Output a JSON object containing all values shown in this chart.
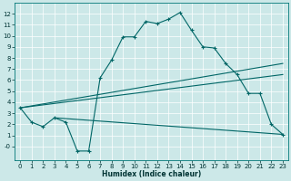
{
  "xlabel": "Humidex (Indice chaleur)",
  "background_color": "#cce8e8",
  "line_color": "#006666",
  "xlim": [
    -0.5,
    23.5
  ],
  "ylim": [
    -1.2,
    13
  ],
  "line1_x": [
    0,
    1,
    2,
    3,
    4,
    5,
    6,
    7,
    8,
    9,
    10,
    11,
    12,
    13,
    14,
    15,
    16,
    17,
    18,
    19,
    20,
    21,
    22,
    23
  ],
  "line1_y": [
    3.5,
    2.2,
    1.8,
    2.6,
    2.2,
    -0.4,
    -0.4,
    6.2,
    7.8,
    9.9,
    9.9,
    11.3,
    11.1,
    11.5,
    12.1,
    10.5,
    9.0,
    8.9,
    7.5,
    6.5,
    4.8,
    4.8,
    2.0,
    1.1
  ],
  "line2_x": [
    0,
    23
  ],
  "line2_y": [
    3.5,
    7.5
  ],
  "line3_x": [
    0,
    23
  ],
  "line3_y": [
    3.5,
    6.5
  ],
  "line4_x": [
    3,
    23
  ],
  "line4_y": [
    2.6,
    1.1
  ],
  "xtick_labels": [
    "0",
    "1",
    "2",
    "3",
    "4",
    "5",
    "6",
    "7",
    "8",
    "9",
    "10",
    "11",
    "12",
    "13",
    "14",
    "15",
    "16",
    "17",
    "18",
    "19",
    "20",
    "21",
    "22",
    "23"
  ],
  "ytick_labels": [
    "-0",
    "1",
    "2",
    "3",
    "4",
    "5",
    "6",
    "7",
    "8",
    "9",
    "10",
    "11",
    "12"
  ]
}
